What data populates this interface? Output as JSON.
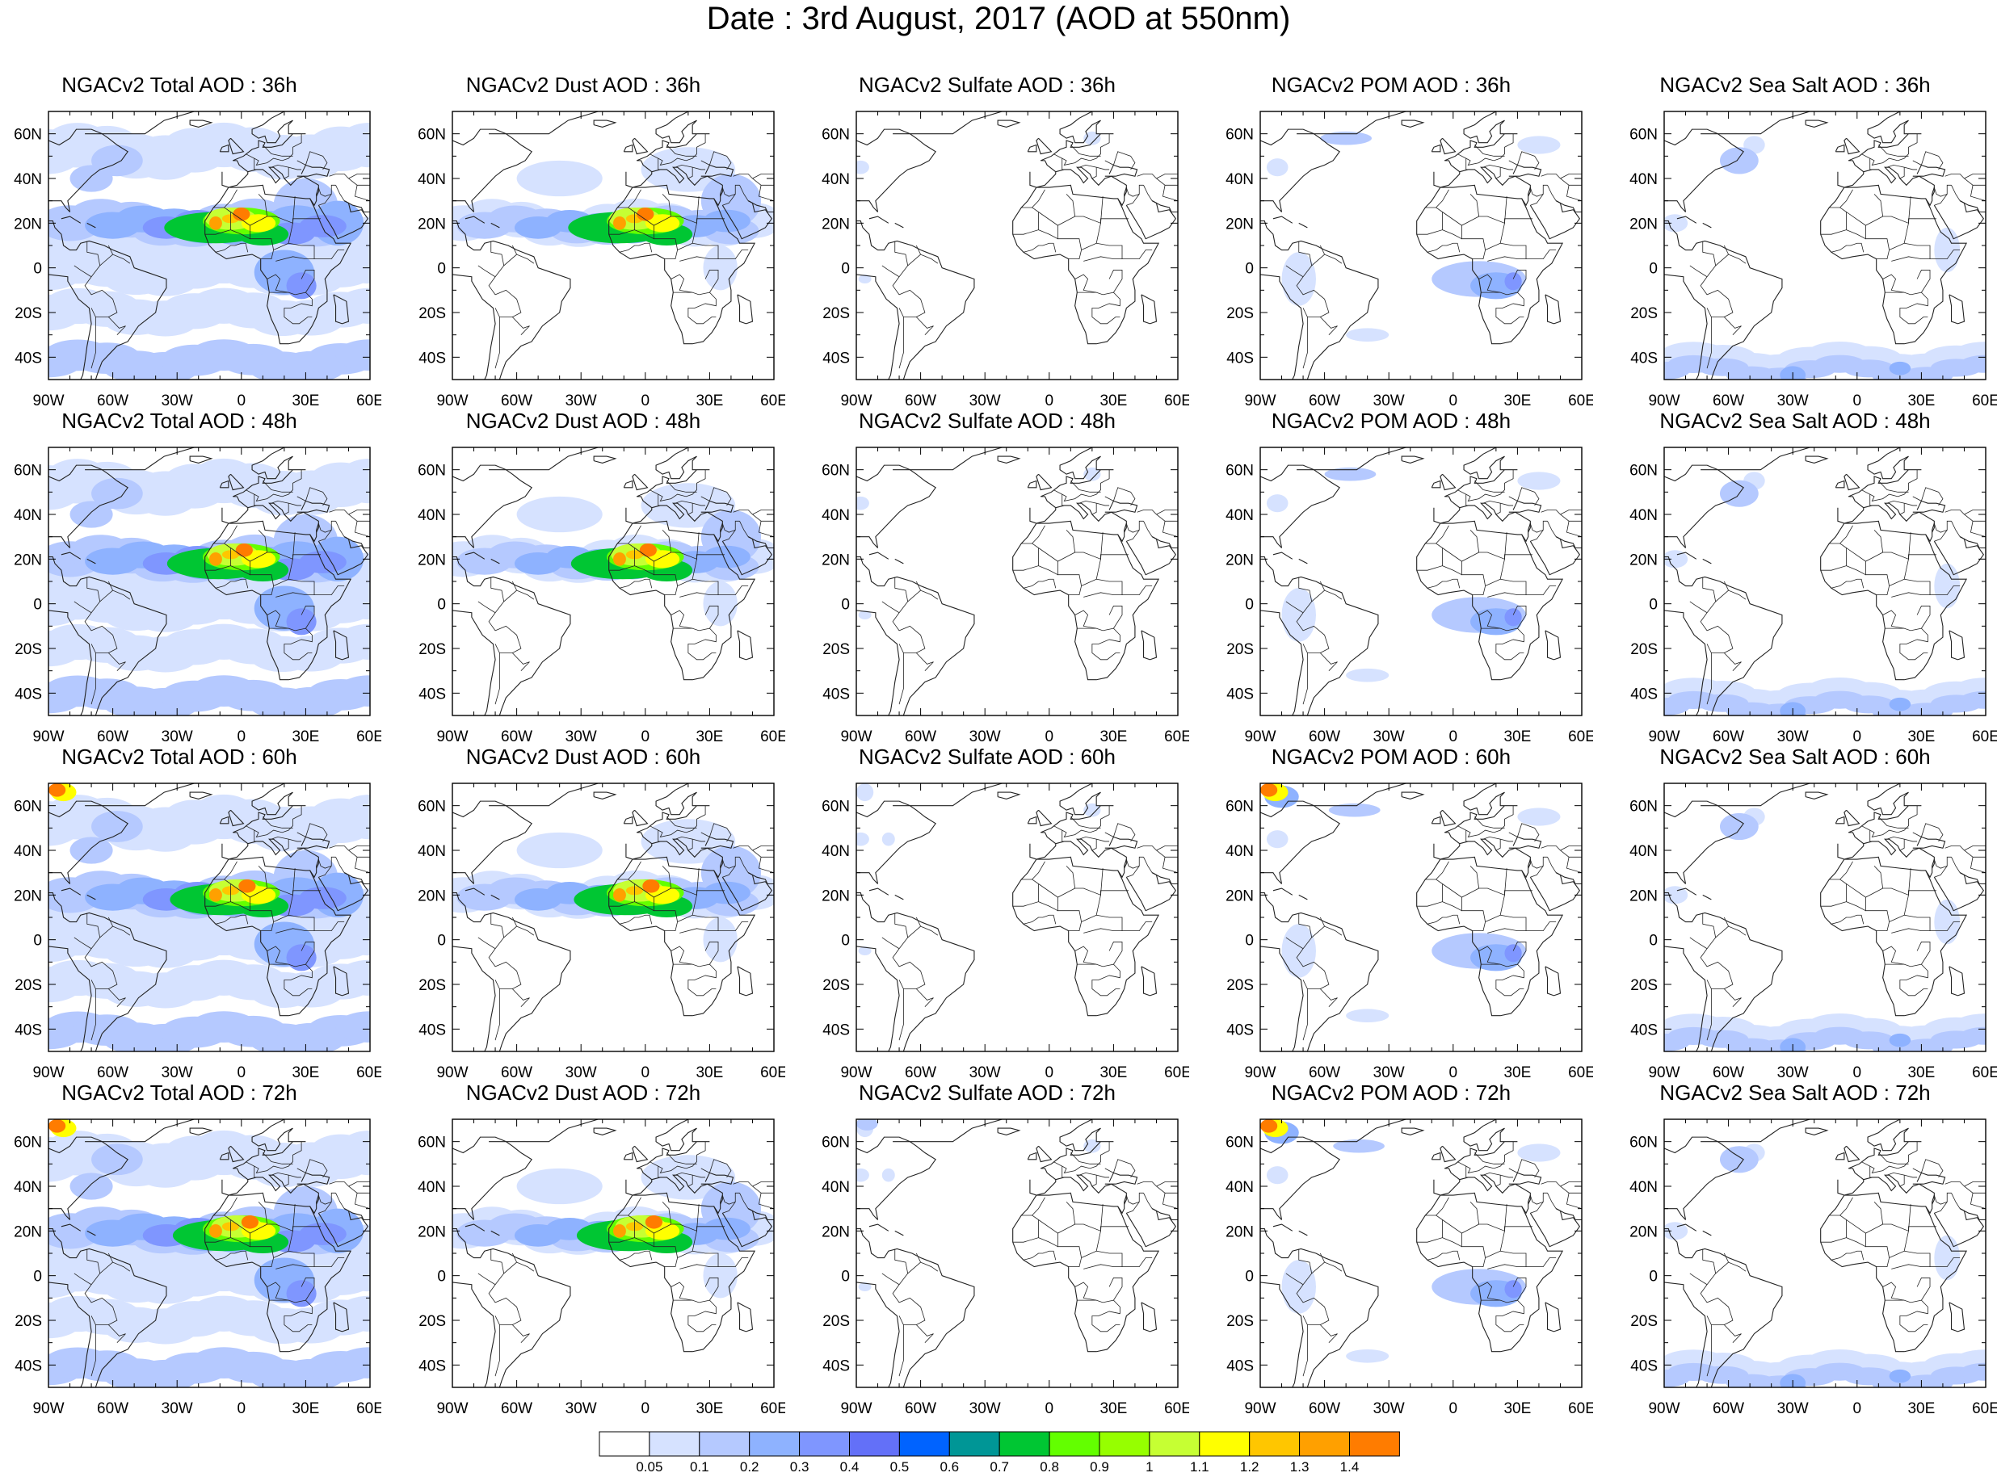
{
  "title": "Date : 3rd August, 2017 (AOD at 550nm)",
  "axes": {
    "lon_ticks": [
      "90W",
      "60W",
      "30W",
      "0",
      "30E",
      "60E"
    ],
    "lat_ticks": [
      "60N",
      "40N",
      "20N",
      "0",
      "20S",
      "40S"
    ],
    "lon_range": [
      -90,
      60
    ],
    "lat_range": [
      -50,
      70
    ]
  },
  "panels": [
    [
      {
        "title": "NGACv2 Total AOD : 36h",
        "field": "total",
        "hour": 36
      },
      {
        "title": "NGACv2 Dust AOD : 36h",
        "field": "dust",
        "hour": 36
      },
      {
        "title": "NGACv2 Sulfate AOD : 36h",
        "field": "sulfate",
        "hour": 36
      },
      {
        "title": "NGACv2 POM AOD : 36h",
        "field": "pom",
        "hour": 36
      },
      {
        "title": "NGACv2 Sea Salt AOD : 36h",
        "field": "seasalt",
        "hour": 36
      }
    ],
    [
      {
        "title": "NGACv2 Total AOD : 48h",
        "field": "total",
        "hour": 48
      },
      {
        "title": "NGACv2 Dust AOD : 48h",
        "field": "dust",
        "hour": 48
      },
      {
        "title": "NGACv2 Sulfate AOD : 48h",
        "field": "sulfate",
        "hour": 48
      },
      {
        "title": "NGACv2 POM AOD : 48h",
        "field": "pom",
        "hour": 48
      },
      {
        "title": "NGACv2 Sea Salt AOD : 48h",
        "field": "seasalt",
        "hour": 48
      }
    ],
    [
      {
        "title": "NGACv2 Total AOD : 60h",
        "field": "total",
        "hour": 60
      },
      {
        "title": "NGACv2 Dust AOD : 60h",
        "field": "dust",
        "hour": 60
      },
      {
        "title": "NGACv2 Sulfate AOD : 60h",
        "field": "sulfate",
        "hour": 60
      },
      {
        "title": "NGACv2 POM AOD : 60h",
        "field": "pom",
        "hour": 60
      },
      {
        "title": "NGACv2 Sea Salt AOD : 60h",
        "field": "seasalt",
        "hour": 60
      }
    ],
    [
      {
        "title": "NGACv2 Total AOD : 72h",
        "field": "total",
        "hour": 72
      },
      {
        "title": "NGACv2 Dust AOD : 72h",
        "field": "dust",
        "hour": 72
      },
      {
        "title": "NGACv2 Sulfate AOD : 72h",
        "field": "sulfate",
        "hour": 72
      },
      {
        "title": "NGACv2 POM AOD : 72h",
        "field": "pom",
        "hour": 72
      },
      {
        "title": "NGACv2 Sea Salt  AOD : 72h",
        "field": "seasalt",
        "hour": 72
      }
    ]
  ],
  "colorbar": {
    "labels": [
      "0.05",
      "0.1",
      "0.2",
      "0.3",
      "0.4",
      "0.5",
      "0.6",
      "0.7",
      "0.8",
      "0.9",
      "1",
      "1.1",
      "1.2",
      "1.3",
      "1.4"
    ],
    "colors": [
      "#ffffff",
      "#d6e2ff",
      "#b5c9ff",
      "#8eb2ff",
      "#7f96ff",
      "#6370f8",
      "#0063ff",
      "#009696",
      "#00c633",
      "#63ff00",
      "#96ff00",
      "#c6ff33",
      "#ffff00",
      "#ffc600",
      "#ffa000",
      "#ff7c00",
      "#ff1900"
    ]
  },
  "colors": {
    "coastline": "#222222",
    "frame": "#000000"
  }
}
